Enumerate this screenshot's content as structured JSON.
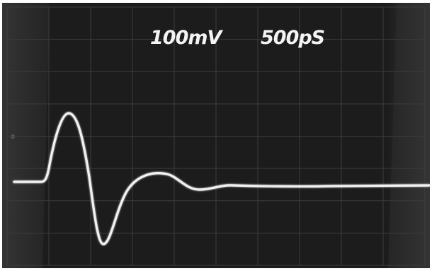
{
  "scope": {
    "vertical_scale_label": "100mV",
    "time_scale_label": "500pS"
  },
  "grid": {
    "columns": 10,
    "rows": 8
  },
  "colors": {
    "screen": "#1b1b1b",
    "screen_edge": "#3a3a3a",
    "grid_line": "#3c3c3c",
    "trace": "#f2f2f2",
    "border": "#ffffff"
  }
}
